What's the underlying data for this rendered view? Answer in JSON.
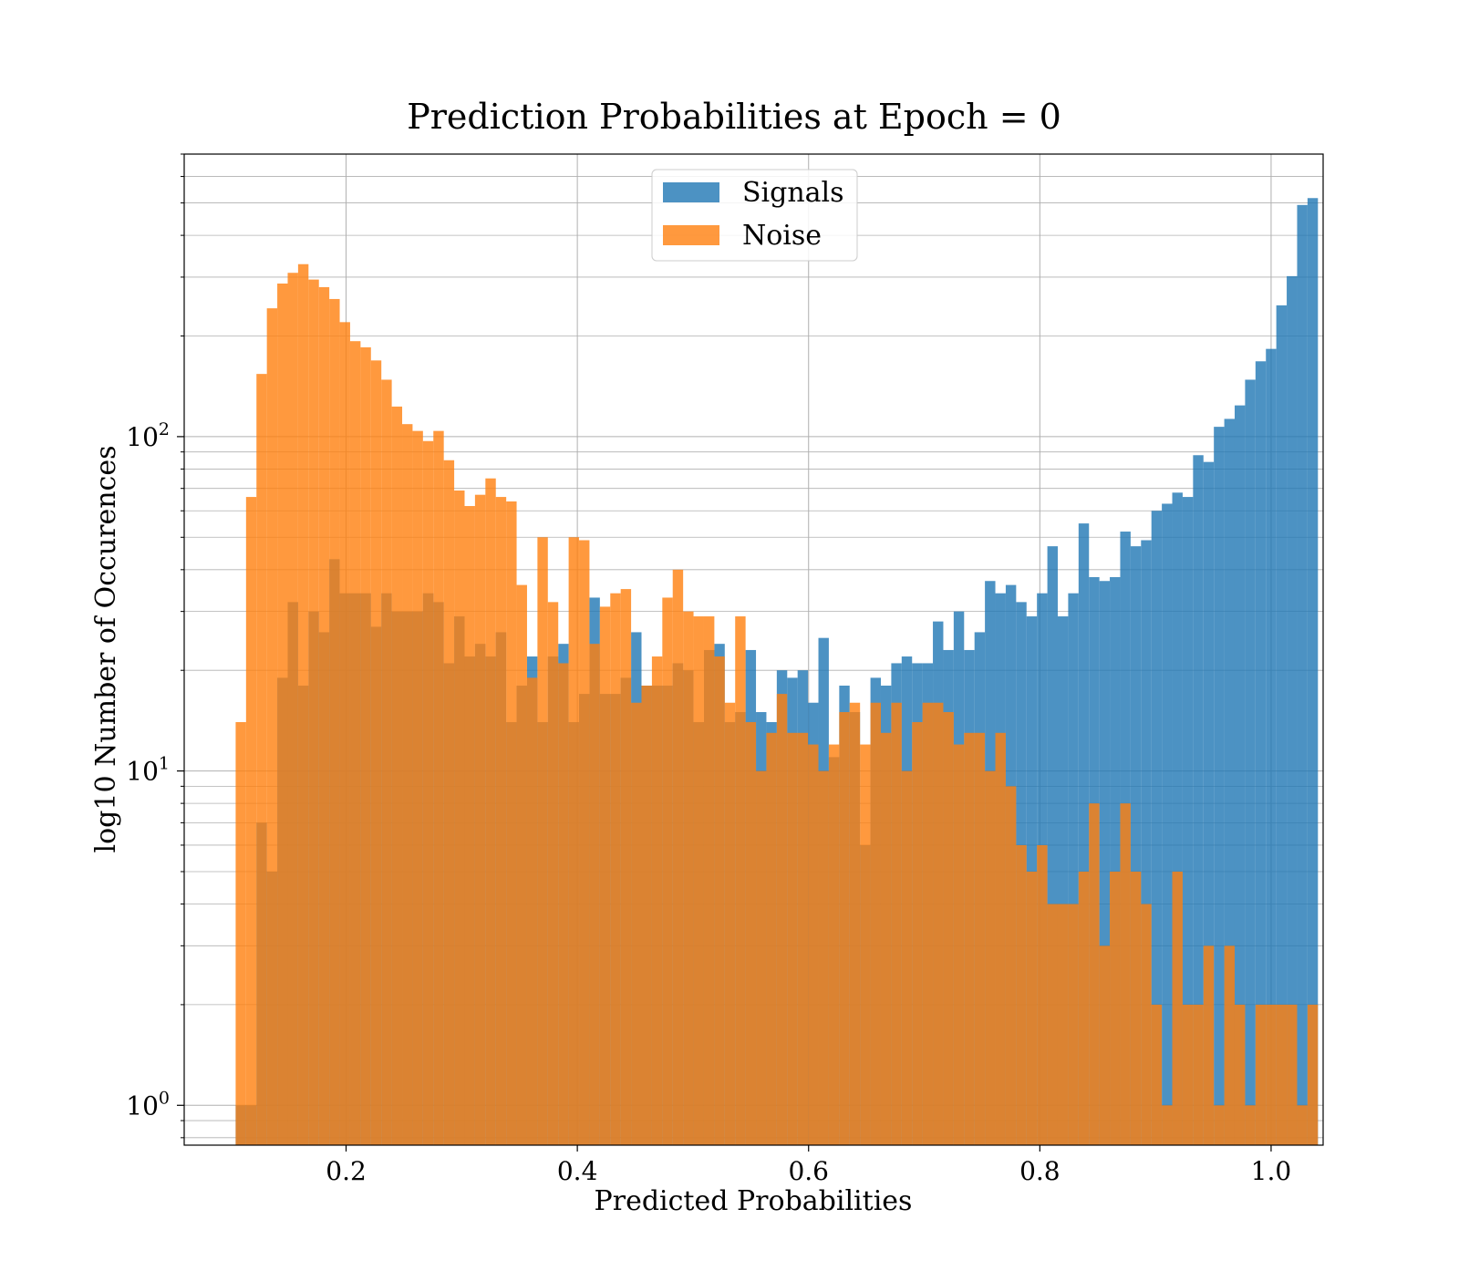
{
  "chart_data": {
    "type": "histogram",
    "title": "Prediction Probabilities at Epoch = 0",
    "xlabel": "Predicted Probabilities",
    "ylabel": "log10 Number of Occurences",
    "xlim": [
      0.06,
      1.045
    ],
    "ylim": [
      0.76,
      700
    ],
    "yscale": "log",
    "grid": true,
    "legend_position": "top-center",
    "x_ticks": [
      {
        "value": 0.2,
        "label": "0.2"
      },
      {
        "value": 0.4,
        "label": "0.4"
      },
      {
        "value": 0.6,
        "label": "0.6"
      },
      {
        "value": 0.8,
        "label": "0.8"
      },
      {
        "value": 1.0,
        "label": "1.0"
      }
    ],
    "y_ticks": [
      {
        "value": 1,
        "base": "10",
        "exp": "0"
      },
      {
        "value": 10,
        "base": "10",
        "exp": "1"
      },
      {
        "value": 100,
        "base": "10",
        "exp": "2"
      }
    ],
    "series": [
      {
        "name": "Signals",
        "color": "#1f77b4",
        "bin_start": 0.1045,
        "bin_width": 0.009,
        "counts": [
          1,
          1,
          7,
          5,
          19,
          32,
          18,
          30,
          26,
          43,
          34,
          34,
          34,
          27,
          34,
          30,
          30,
          30,
          34,
          32,
          21,
          29,
          22,
          24,
          22,
          26,
          14,
          18,
          22,
          14,
          22,
          24,
          14,
          17,
          33,
          17,
          17,
          19,
          26,
          18,
          18,
          18,
          21,
          20,
          14,
          23,
          24,
          14,
          15,
          23,
          15,
          14,
          20,
          19,
          20,
          16,
          25,
          11,
          18,
          15,
          6,
          19,
          18,
          21,
          22,
          21,
          21,
          28,
          23,
          30,
          23,
          26,
          37,
          34,
          36,
          32,
          29,
          34,
          47,
          29,
          34,
          55,
          38,
          37,
          38,
          52,
          47,
          49,
          60,
          63,
          68,
          66,
          88,
          84,
          107,
          113,
          124,
          148,
          168,
          183,
          247,
          302,
          493,
          517
        ],
        "heights_unit": "count"
      },
      {
        "name": "Noise",
        "color": "#ff7f0e",
        "bin_start": 0.1045,
        "bin_width": 0.009,
        "counts": [
          14,
          66,
          154,
          242,
          287,
          309,
          328,
          295,
          280,
          258,
          220,
          193,
          185,
          169,
          148,
          123,
          109,
          104,
          97,
          104,
          85,
          69,
          62,
          67,
          75,
          66,
          64,
          36,
          19,
          50,
          32,
          21,
          50,
          49,
          24,
          31,
          34,
          35,
          16,
          18,
          22,
          33,
          40,
          30,
          29,
          29,
          22,
          16,
          29,
          14,
          10,
          13,
          17,
          13,
          13,
          12,
          10,
          12,
          15,
          16,
          12,
          16,
          13,
          16,
          10,
          14,
          16,
          16,
          15,
          12,
          13,
          13,
          10,
          13,
          9,
          6,
          5,
          6,
          4,
          4,
          4,
          5,
          8,
          3,
          5,
          8,
          5,
          4,
          2,
          1,
          5,
          2,
          2,
          3,
          1,
          3,
          2,
          1,
          2,
          2,
          2,
          2,
          1,
          2
        ]
      }
    ]
  }
}
